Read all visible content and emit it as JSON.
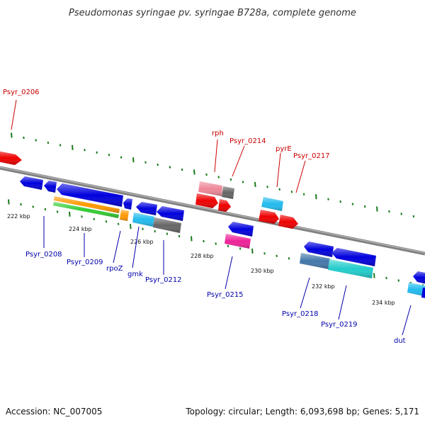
{
  "header": {
    "title": "Pseudomonas syringae pv. syringae B728a, complete genome"
  },
  "footer": {
    "accession": "Accession: NC_007005",
    "summary": "Topology: circular; Length: 6,093,698 bp; Genes: 5,171"
  },
  "scale": {
    "ticks": [
      "222 kbp",
      "224 kbp",
      "226 kbp",
      "228 kbp",
      "230 kbp",
      "232 kbp",
      "234 kbp"
    ]
  },
  "genes": {
    "forward_labels": [
      "Psyr_0206",
      "rph",
      "Psyr_0214",
      "pyrE",
      "Psyr_0217"
    ],
    "reverse_labels": [
      "Psyr_0208",
      "Psyr_0209",
      "rpoZ",
      "gmk",
      "Psyr_0212",
      "Psyr_0215",
      "Psyr_0218",
      "Psyr_0219",
      "dut"
    ]
  },
  "colors": {
    "backbone": "#808080",
    "tick": "#1a7a1a",
    "forward_label": "#cc0000",
    "reverse_label": "#0000aa",
    "gene_red": "#ee0000",
    "gene_blue": "#0000dd",
    "gene_orange": "#ff9900",
    "gene_green": "#33cc33",
    "gene_cyan": "#22bbee",
    "gene_gray": "#666666",
    "gene_pink": "#ee6688",
    "gene_magenta": "#ee2299",
    "gene_steel": "#4477aa",
    "gene_teal": "#22cccc"
  }
}
